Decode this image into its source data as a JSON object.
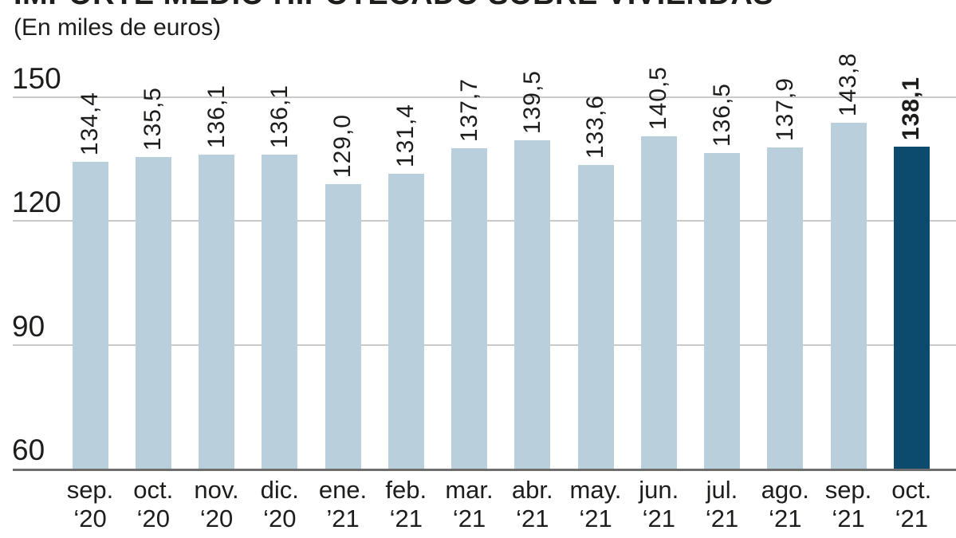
{
  "header": {
    "title": "IMPORTE MEDIO HIPOTECADO SOBRE VIVIENDAS",
    "subtitle": "(En miles de euros)"
  },
  "chart_data": {
    "type": "bar",
    "title": "IMPORTE MEDIO HIPOTECADO SOBRE VIVIENDAS",
    "subtitle": "(En miles de euros)",
    "unit": "miles de euros",
    "categories": [
      {
        "month": "sep.",
        "year": "‘20"
      },
      {
        "month": "oct.",
        "year": "‘20"
      },
      {
        "month": "nov.",
        "year": "‘20"
      },
      {
        "month": "dic.",
        "year": "‘20"
      },
      {
        "month": "ene.",
        "year": "’21"
      },
      {
        "month": "feb.",
        "year": "‘21"
      },
      {
        "month": "mar.",
        "year": "‘21"
      },
      {
        "month": "abr.",
        "year": "‘21"
      },
      {
        "month": "may.",
        "year": "‘21"
      },
      {
        "month": "jun.",
        "year": "‘21"
      },
      {
        "month": "jul.",
        "year": "‘21"
      },
      {
        "month": "ago.",
        "year": "‘21"
      },
      {
        "month": "sep.",
        "year": "‘21"
      },
      {
        "month": "oct.",
        "year": "‘21"
      }
    ],
    "values": [
      134.4,
      135.5,
      136.1,
      136.1,
      129.0,
      131.4,
      137.7,
      139.5,
      133.6,
      140.5,
      136.5,
      137.9,
      143.8,
      138.1
    ],
    "value_labels": [
      "134,4",
      "135,5",
      "136,1",
      "136,1",
      "129,0",
      "131,4",
      "137,7",
      "139,5",
      "133,6",
      "140,5",
      "136,5",
      "137,9",
      "143,8",
      "138,1"
    ],
    "highlight_index": 13,
    "ylim": [
      60,
      150
    ],
    "yticks": [
      150,
      120,
      90,
      60
    ],
    "grid": true,
    "legend": false,
    "colors": {
      "bar": "#b9cfdc",
      "bar_highlight": "#0d4b6e",
      "gridline": "#c9c9c9",
      "baseline": "#6e6e6e",
      "text": "#1d1d1b"
    }
  }
}
